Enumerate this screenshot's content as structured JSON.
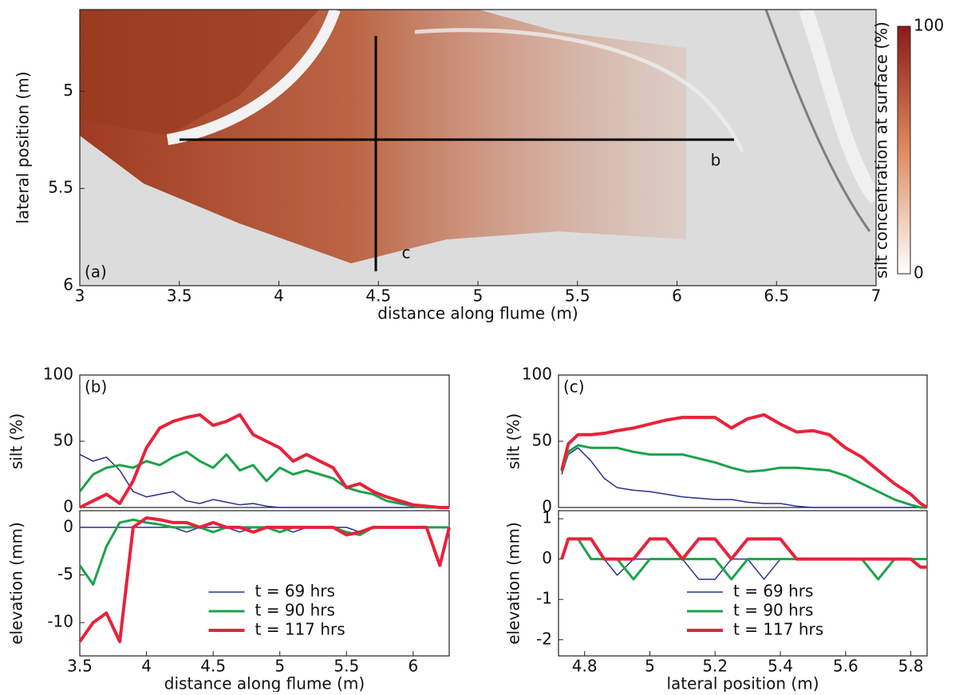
{
  "chart_data": [
    {
      "type": "map",
      "panel_label": "(a)",
      "xlabel": "distance along flume (m)",
      "ylabel": "lateral position (m)",
      "xlim": [
        3,
        7
      ],
      "xticks": [
        3,
        3.5,
        4,
        4.5,
        5,
        5.5,
        6,
        6.5,
        7
      ],
      "ylim": [
        6,
        4.58
      ],
      "yticks": [
        5,
        5.5,
        6
      ],
      "transect_labels": [
        "b",
        "c"
      ],
      "colorbar": {
        "label": "silt concentration at surface (%)",
        "lim": [
          0,
          100
        ],
        "ticks": [
          0,
          100
        ]
      }
    },
    {
      "type": "line",
      "panel_label": "(b)",
      "ylabel": "silt (%)",
      "x": [
        3.5,
        3.6,
        3.7,
        3.8,
        3.9,
        4.0,
        4.1,
        4.2,
        4.3,
        4.4,
        4.5,
        4.6,
        4.7,
        4.8,
        4.9,
        5.0,
        5.1,
        5.2,
        5.3,
        5.4,
        5.5,
        5.6,
        5.7,
        5.8,
        5.9,
        6.0,
        6.1,
        6.2,
        6.27
      ],
      "xlim": [
        3.5,
        6.27
      ],
      "ylim": [
        0,
        100
      ],
      "yticks": [
        0,
        50,
        100
      ],
      "series": [
        {
          "color": "#2b2f8f",
          "width": 1.5,
          "values": [
            40,
            35,
            38,
            28,
            12,
            8,
            10,
            12,
            5,
            3,
            6,
            4,
            2,
            3,
            1,
            0,
            0,
            0,
            0,
            0,
            0,
            0,
            0,
            0,
            0,
            0,
            0,
            0,
            0
          ]
        },
        {
          "color": "#1aa34a",
          "width": 3,
          "values": [
            12,
            25,
            30,
            32,
            30,
            35,
            32,
            38,
            42,
            35,
            30,
            40,
            28,
            32,
            20,
            30,
            25,
            28,
            25,
            22,
            15,
            12,
            10,
            5,
            3,
            1,
            0,
            0,
            0
          ]
        },
        {
          "color": "#e8223a",
          "width": 4,
          "values": [
            0,
            5,
            10,
            3,
            20,
            45,
            60,
            65,
            68,
            70,
            62,
            65,
            70,
            55,
            50,
            45,
            35,
            40,
            35,
            30,
            15,
            18,
            12,
            8,
            5,
            2,
            1,
            0,
            0
          ]
        }
      ]
    },
    {
      "type": "line",
      "ylabel": "elevation (mm)",
      "xlabel": "distance along flume (m)",
      "x": [
        3.5,
        3.6,
        3.7,
        3.8,
        3.9,
        4.0,
        4.1,
        4.2,
        4.3,
        4.4,
        4.5,
        4.6,
        4.7,
        4.8,
        4.9,
        5.0,
        5.1,
        5.2,
        5.3,
        5.4,
        5.5,
        5.6,
        5.7,
        5.8,
        5.9,
        6.0,
        6.1,
        6.2,
        6.27
      ],
      "xlim": [
        3.5,
        6.27
      ],
      "xticks": [
        3.5,
        4,
        4.5,
        5,
        5.5,
        6
      ],
      "ylim": [
        -13.5,
        1.75
      ],
      "yticks": [
        -10,
        -5,
        0
      ],
      "legend": "lower center",
      "series": [
        {
          "name": "t = 69 hrs",
          "color": "#2b2f8f",
          "width": 1.5,
          "values": [
            0,
            0,
            0,
            0,
            0,
            0,
            0,
            0,
            -0.5,
            0,
            0,
            0,
            -0.5,
            0,
            0,
            0,
            -0.5,
            0,
            0,
            0,
            0,
            -0.5,
            0,
            0,
            0,
            0,
            0,
            0,
            0
          ]
        },
        {
          "name": "t = 90 hrs",
          "color": "#1aa34a",
          "width": 3,
          "values": [
            -4,
            -6,
            -2,
            0.5,
            0.8,
            0.5,
            0.3,
            0,
            0,
            0,
            -0.5,
            0,
            0,
            0,
            0,
            -0.5,
            0,
            0,
            0,
            0,
            -0.5,
            -0.8,
            0,
            0,
            0,
            0,
            0,
            0,
            0
          ]
        },
        {
          "name": "t = 117 hrs",
          "color": "#e8223a",
          "width": 4,
          "values": [
            -12,
            -10,
            -9,
            -12,
            0,
            1,
            0.8,
            0.5,
            0.5,
            0,
            0.5,
            0,
            0,
            -0.5,
            0,
            0,
            0,
            0,
            0,
            0,
            -0.8,
            -0.5,
            0,
            0,
            0,
            0,
            0,
            -4,
            0
          ]
        }
      ]
    },
    {
      "type": "line",
      "panel_label": "(c)",
      "ylabel": "silt (%)",
      "x": [
        4.73,
        4.75,
        4.78,
        4.82,
        4.86,
        4.9,
        4.95,
        5.0,
        5.05,
        5.1,
        5.15,
        5.2,
        5.25,
        5.3,
        5.35,
        5.4,
        5.45,
        5.5,
        5.55,
        5.6,
        5.65,
        5.7,
        5.75,
        5.8,
        5.83,
        5.85
      ],
      "xlim": [
        4.72,
        5.85
      ],
      "ylim": [
        0,
        100
      ],
      "yticks": [
        0,
        50,
        100
      ],
      "series": [
        {
          "color": "#2b2f8f",
          "width": 1.5,
          "values": [
            25,
            40,
            45,
            35,
            22,
            15,
            13,
            12,
            10,
            8,
            7,
            6,
            6,
            4,
            3,
            3,
            1,
            0,
            0,
            0,
            0,
            0,
            0,
            0,
            0,
            0
          ]
        },
        {
          "color": "#1aa34a",
          "width": 3,
          "values": [
            27,
            42,
            47,
            45,
            45,
            45,
            42,
            40,
            40,
            40,
            37,
            34,
            30,
            27,
            28,
            30,
            30,
            29,
            28,
            24,
            18,
            12,
            6,
            2,
            0,
            0
          ]
        },
        {
          "color": "#e8223a",
          "width": 4,
          "values": [
            28,
            48,
            55,
            55,
            56,
            58,
            60,
            63,
            66,
            68,
            68,
            68,
            60,
            67,
            70,
            63,
            57,
            58,
            55,
            45,
            38,
            28,
            18,
            10,
            3,
            0
          ]
        }
      ]
    },
    {
      "type": "line",
      "ylabel": "elevation (mm)",
      "xlabel": "lateral position (m)",
      "x": [
        4.73,
        4.75,
        4.78,
        4.82,
        4.86,
        4.9,
        4.95,
        5.0,
        5.05,
        5.1,
        5.15,
        5.2,
        5.25,
        5.3,
        5.35,
        5.4,
        5.45,
        5.5,
        5.55,
        5.6,
        5.65,
        5.7,
        5.75,
        5.8,
        5.83,
        5.85
      ],
      "xlim": [
        4.72,
        5.85
      ],
      "xticks": [
        4.8,
        5,
        5.2,
        5.4,
        5.6,
        5.8
      ],
      "ylim": [
        -2.4,
        1.2
      ],
      "yticks": [
        -2,
        -1,
        0,
        1
      ],
      "legend": "lower center",
      "series": [
        {
          "name": "t = 69 hrs",
          "color": "#2b2f8f",
          "width": 1.5,
          "values": [
            0,
            0.5,
            0.5,
            0,
            0,
            -0.4,
            0,
            0,
            0,
            0,
            -0.5,
            -0.5,
            0,
            0,
            -0.5,
            0,
            0,
            0,
            0,
            0,
            0,
            -0.5,
            0,
            0,
            0,
            0
          ]
        },
        {
          "name": "t = 90 hrs",
          "color": "#1aa34a",
          "width": 3,
          "values": [
            0,
            0.5,
            0.5,
            0,
            0,
            0,
            -0.5,
            0,
            0,
            0,
            0,
            0,
            -0.5,
            0,
            0,
            0,
            0,
            0,
            0,
            0,
            0,
            -0.5,
            0,
            0,
            0,
            0
          ]
        },
        {
          "name": "t = 117 hrs",
          "color": "#e8223a",
          "width": 4,
          "values": [
            0,
            0.5,
            0.5,
            0.5,
            0,
            0,
            0,
            0.5,
            0.5,
            0,
            0.5,
            0.5,
            0,
            0.5,
            0.5,
            0.5,
            0,
            0,
            0,
            0,
            0,
            0,
            0,
            0,
            -0.2,
            -0.2
          ]
        }
      ]
    }
  ]
}
